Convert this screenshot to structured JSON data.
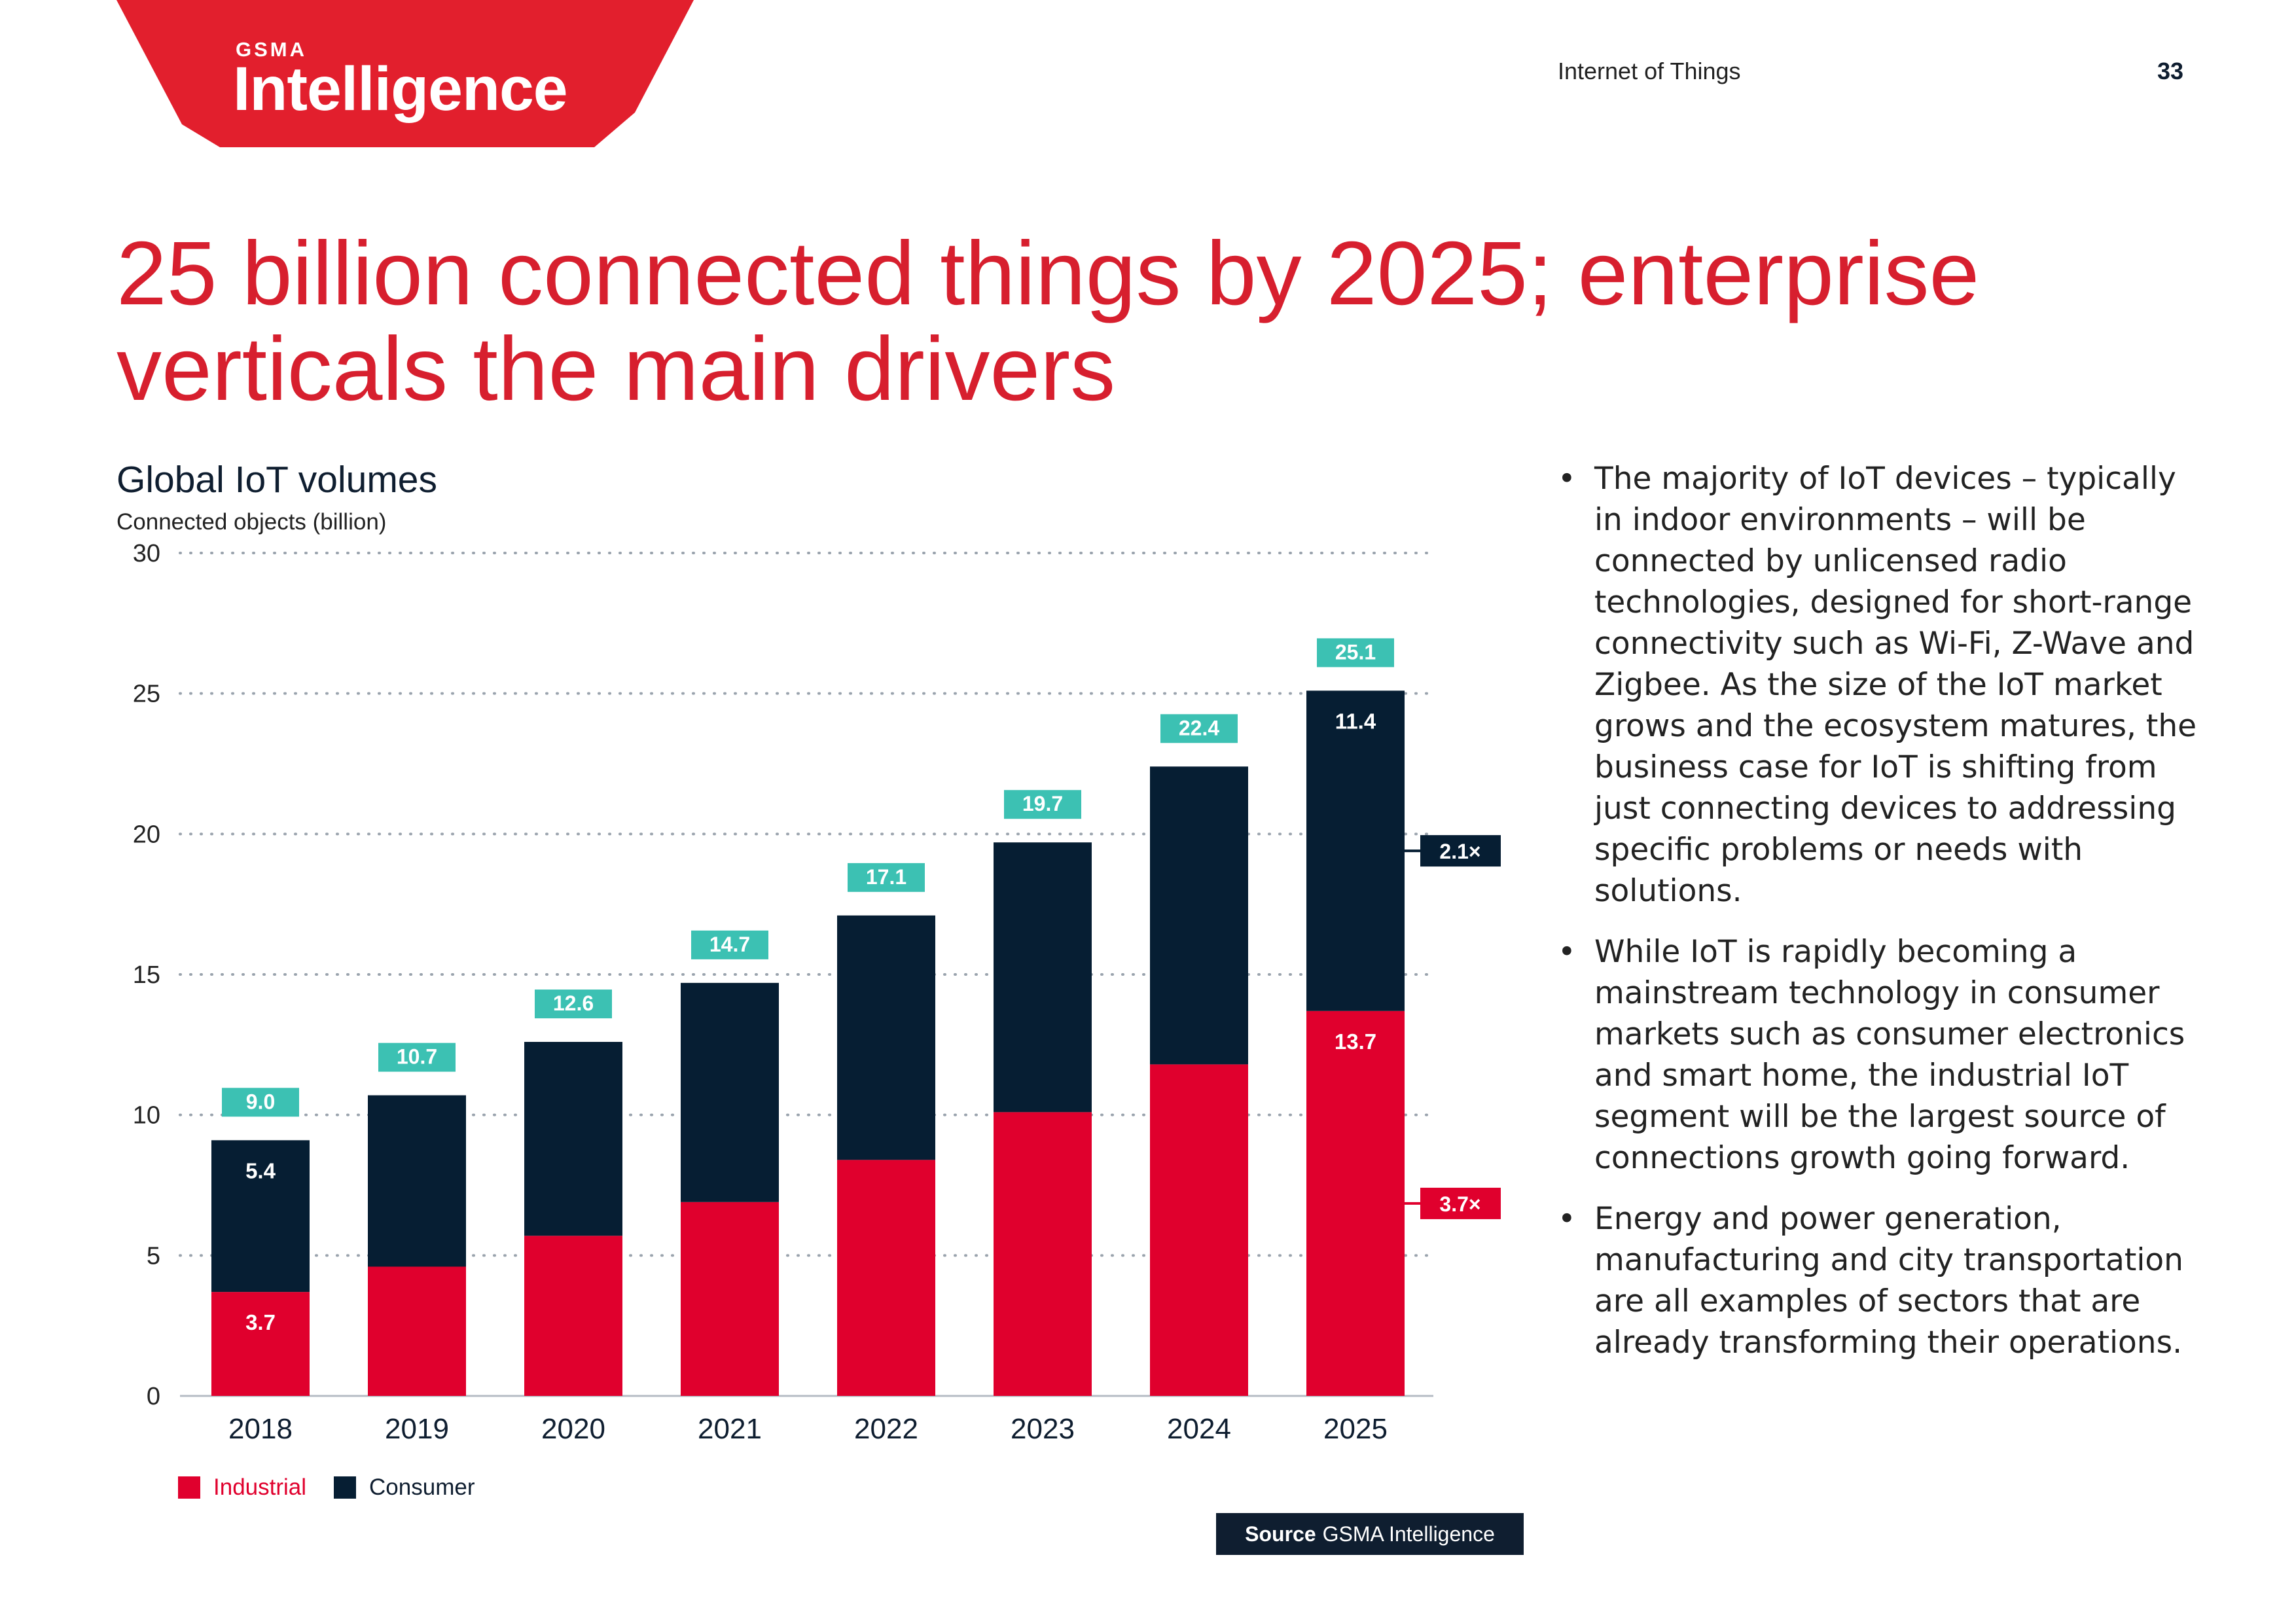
{
  "header": {
    "logo_top": "GSMA",
    "logo_word": "Intelligence",
    "section": "Internet of Things",
    "page_number": "33"
  },
  "headline": {
    "line1": "25 billion connected things by 2025; enterprise",
    "line2": "verticals the main drivers"
  },
  "chart": {
    "title": "Global IoT volumes",
    "subtitle": "Connected objects (billion)"
  },
  "colors": {
    "industrial": "#e0002d",
    "consumer": "#061e33",
    "total_label": "#3cc1b3",
    "accent_red": "#d71f2e"
  },
  "chart_data": {
    "type": "bar",
    "stacked": true,
    "title": "Global IoT volumes",
    "ylabel": "Connected objects (billion)",
    "xlabel": "",
    "ylim": [
      0,
      30
    ],
    "yticks": [
      0,
      5,
      10,
      15,
      20,
      25,
      30
    ],
    "grid": "dotted-horizontal",
    "categories": [
      "2018",
      "2019",
      "2020",
      "2021",
      "2022",
      "2023",
      "2024",
      "2025"
    ],
    "series": [
      {
        "name": "Industrial",
        "values": [
          3.7,
          4.6,
          5.7,
          6.9,
          8.4,
          10.1,
          11.8,
          13.7
        ]
      },
      {
        "name": "Consumer",
        "values": [
          5.4,
          6.1,
          6.9,
          7.8,
          8.7,
          9.6,
          10.6,
          11.4
        ]
      }
    ],
    "totals": [
      9.0,
      10.7,
      12.6,
      14.7,
      17.1,
      19.7,
      22.4,
      25.1
    ],
    "segment_labels": [
      {
        "category": "2018",
        "series": "Industrial",
        "text": "3.7"
      },
      {
        "category": "2018",
        "series": "Consumer",
        "text": "5.4"
      },
      {
        "category": "2025",
        "series": "Industrial",
        "text": "13.7"
      },
      {
        "category": "2025",
        "series": "Consumer",
        "text": "11.4"
      }
    ],
    "total_labels": [
      "9.0",
      "10.7",
      "12.6",
      "14.7",
      "17.1",
      "19.7",
      "22.4",
      "25.1"
    ],
    "growth_callouts": [
      {
        "series": "Consumer",
        "text": "2.1×"
      },
      {
        "series": "Industrial",
        "text": "3.7×"
      }
    ],
    "legend": [
      "Industrial",
      "Consumer"
    ]
  },
  "source": {
    "label": "Source",
    "text": "GSMA Intelligence"
  },
  "bullets": [
    "The majority of IoT devices – typically in indoor environments – will be connected by unlicensed radio technologies, designed for short-range connectivity such as Wi-Fi, Z-Wave and Zigbee. As the size of the IoT market grows and the ecosystem matures, the business case for IoT is shifting from just connecting devices to addressing specific problems or needs with solutions.",
    "While IoT is rapidly becoming a mainstream technology in consumer markets such as consumer electronics and smart home, the industrial IoT segment will be the largest source of connections growth going forward.",
    "Energy and power generation, manufacturing and city transportation are all examples of sectors that are already transforming their operations."
  ]
}
